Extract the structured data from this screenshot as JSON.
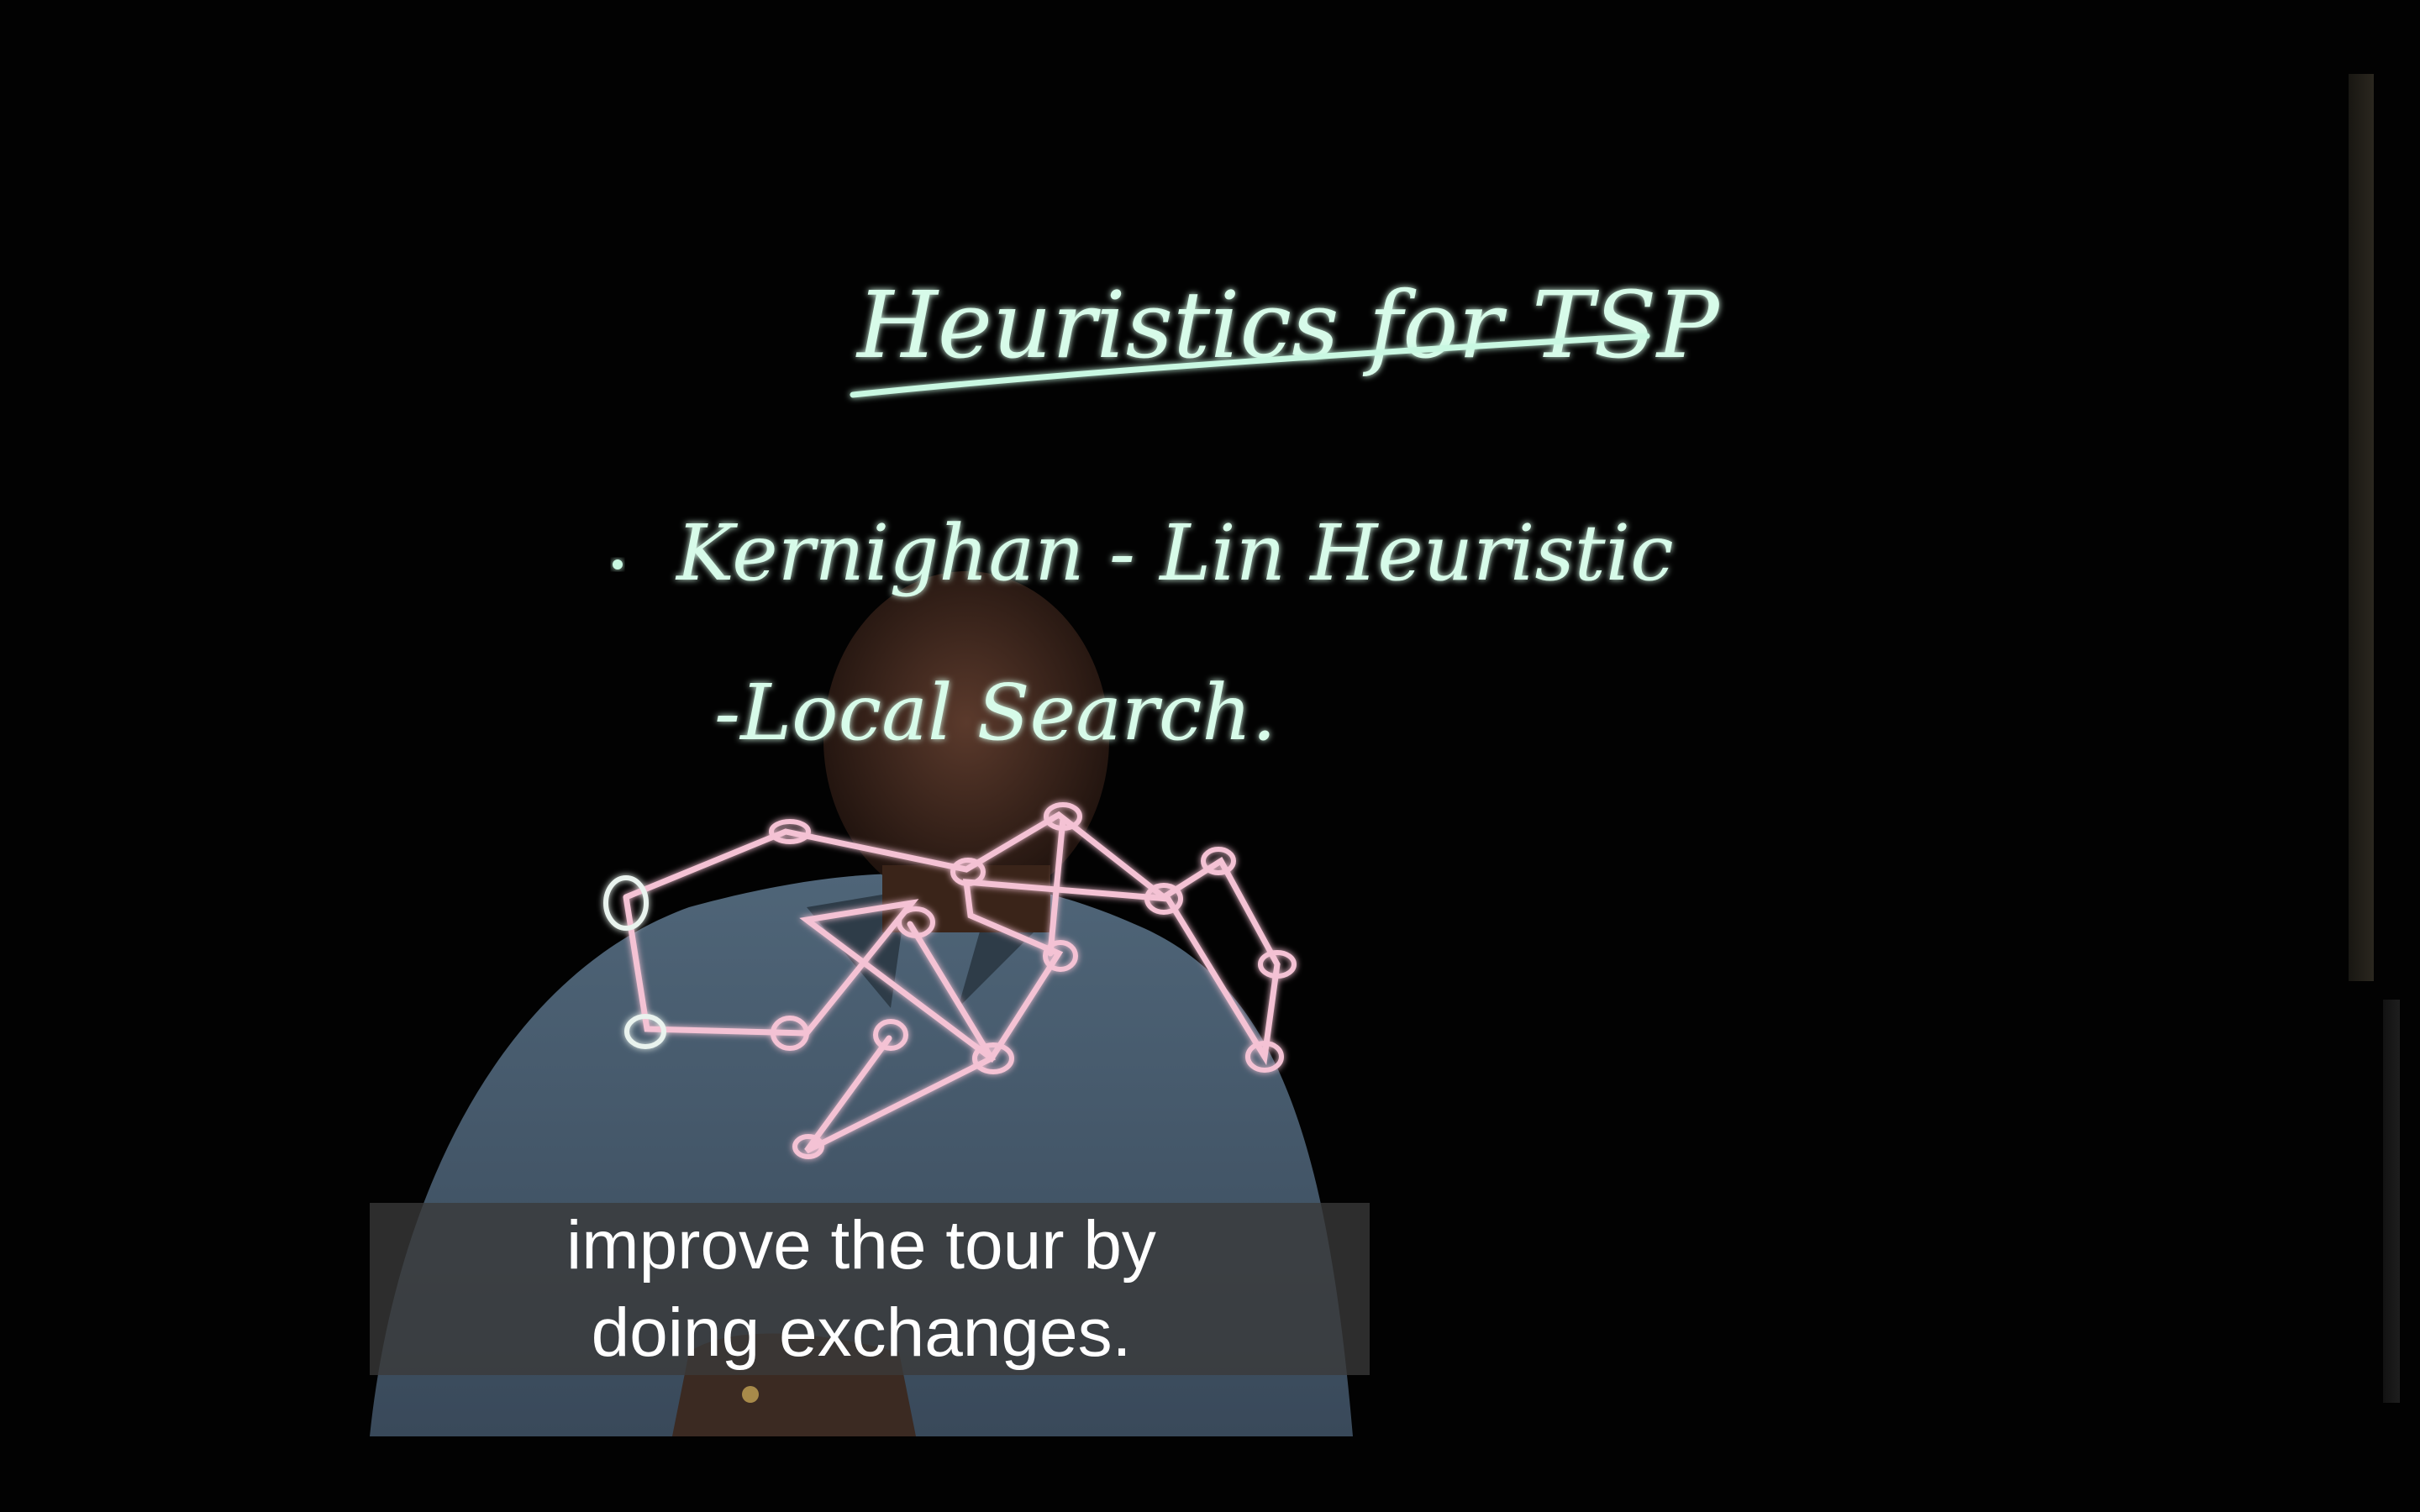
{
  "video": {
    "title_written": "Heuristics for TSP",
    "bullet_line": "Kernighan - Lin Heuristic",
    "sub_line": "-Local Search.",
    "caption": {
      "line1": "improve the tour by",
      "line2": "doing exchanges."
    }
  },
  "colors": {
    "background": "#000000",
    "chalk_green": "#bff7df",
    "chalk_pink": "#f3bfd1",
    "caption_bg": "#3a3a3a",
    "caption_text": "#ffffff"
  }
}
